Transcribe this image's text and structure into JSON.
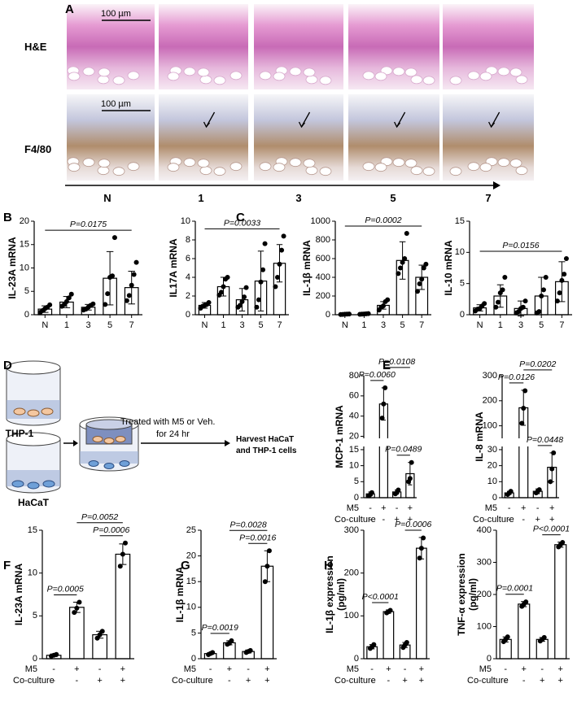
{
  "panel_labels": [
    "A",
    "B",
    "C",
    "D",
    "E",
    "F",
    "G",
    "H"
  ],
  "histology": {
    "row_labels": [
      "H&E",
      "F4/80"
    ],
    "scale_bar": "100 µm",
    "timepoints": [
      "N",
      "1",
      "3",
      "5",
      "7"
    ]
  },
  "schematic": {
    "cells_top": "THP-1",
    "cells_bottom": "HaCaT",
    "treatment": [
      "Treated with M5  or Veh.",
      "for 24 hr"
    ],
    "harvest": [
      "Harvest HaCaT",
      "and THP-1 cells"
    ]
  },
  "chart_data": [
    {
      "type": "bar",
      "ylabel": "IL-23A mRNA",
      "categories": [
        "N",
        "1",
        "3",
        "5",
        "7"
      ],
      "values": [
        1.2,
        2.7,
        1.6,
        7.8,
        5.8
      ],
      "errors": [
        0.7,
        1.2,
        0.6,
        5.7,
        3.5
      ],
      "points": [
        [
          0.5,
          0.9,
          1.3,
          1.6,
          2.1
        ],
        [
          1.8,
          2.2,
          2.8,
          3.6,
          4.4
        ],
        [
          1.0,
          1.2,
          1.6,
          2.0,
          2.3
        ],
        [
          2.2,
          4.5,
          8.0,
          8.3,
          16.5
        ],
        [
          3.0,
          4.1,
          6.3,
          8.6,
          11.2
        ]
      ],
      "ylim": [
        0,
        20
      ],
      "yticks": [
        0,
        5,
        10,
        15,
        20
      ],
      "bar_fill": "#ffffff",
      "edge_color": "#000000",
      "comparisons": [
        {
          "label": "P=0.0175",
          "between": [
            0,
            4
          ]
        }
      ]
    },
    {
      "type": "bar",
      "ylabel": "IL17A mRNA",
      "categories": [
        "N",
        "1",
        "3",
        "5",
        "7"
      ],
      "values": [
        1.0,
        3.0,
        1.6,
        3.6,
        5.5
      ],
      "errors": [
        0.3,
        1.0,
        1.2,
        3.2,
        2.0
      ],
      "points": [
        [
          0.7,
          0.9,
          1.0,
          1.1,
          1.3
        ],
        [
          2.1,
          2.4,
          3.0,
          3.8,
          4.0
        ],
        [
          0.8,
          1.0,
          1.4,
          1.9,
          2.9
        ],
        [
          0.8,
          1.6,
          3.5,
          4.8,
          7.6
        ],
        [
          3.0,
          4.0,
          5.4,
          6.9,
          8.4
        ]
      ],
      "ylim": [
        0,
        10
      ],
      "yticks": [
        0,
        2,
        4,
        6,
        8,
        10
      ],
      "bar_fill": "#ffffff",
      "edge_color": "#000000",
      "comparisons": [
        {
          "label": "P=0.0033",
          "between": [
            0,
            4
          ]
        }
      ]
    },
    {
      "type": "bar",
      "ylabel": "IL-1β mRNA",
      "categories": [
        "N",
        "1",
        "3",
        "5",
        "7"
      ],
      "values": [
        5,
        8,
        100,
        580,
        400
      ],
      "errors": [
        3,
        4,
        40,
        200,
        130
      ],
      "points": [
        [
          2,
          3,
          5,
          6,
          8
        ],
        [
          4,
          6,
          8,
          10,
          12
        ],
        [
          50,
          80,
          95,
          140,
          160
        ],
        [
          440,
          500,
          560,
          600,
          870
        ],
        [
          250,
          330,
          380,
          500,
          540
        ]
      ],
      "ylim": [
        0,
        1000
      ],
      "yticks": [
        0,
        200,
        400,
        600,
        800,
        1000
      ],
      "bar_fill": "#ffffff",
      "edge_color": "#000000",
      "comparisons": [
        {
          "label": "P=0.0002",
          "between": [
            0,
            4
          ]
        }
      ]
    },
    {
      "type": "bar",
      "ylabel": "IL-10 mRNA",
      "categories": [
        "N",
        "1",
        "3",
        "5",
        "7"
      ],
      "values": [
        1.1,
        3.0,
        1.0,
        3.0,
        5.3
      ],
      "errors": [
        0.5,
        1.8,
        1.2,
        3.0,
        3.2
      ],
      "points": [
        [
          0.6,
          0.9,
          1.0,
          1.4,
          1.8
        ],
        [
          1.2,
          2.0,
          3.5,
          4.0,
          6.0
        ],
        [
          0.3,
          0.5,
          1.0,
          1.2,
          2.2
        ],
        [
          0.3,
          0.5,
          3.0,
          4.0,
          6.0
        ],
        [
          2.2,
          3.5,
          5.5,
          6.5,
          9.0
        ]
      ],
      "ylim": [
        0,
        15
      ],
      "yticks": [
        0,
        5,
        10,
        15
      ],
      "bar_fill": "#ffffff",
      "edge_color": "#000000",
      "comparisons": [
        {
          "label": "P=0.0156",
          "between": [
            0,
            4
          ]
        }
      ]
    },
    {
      "type": "bar",
      "ylabel": "MCP-1 mRNA",
      "conditions": [
        {
          "name": "M5",
          "values": [
            "-",
            "+",
            "-",
            "+"
          ]
        },
        {
          "name": "Co-culture",
          "values": [
            "-",
            "-",
            "+",
            "+"
          ]
        }
      ],
      "values": [
        1.2,
        52,
        1.8,
        7.5
      ],
      "errors": [
        0.6,
        16,
        0.6,
        3.5
      ],
      "points": [
        [
          0.6,
          1.0,
          1.6
        ],
        [
          38,
          52,
          68
        ],
        [
          1.2,
          1.6,
          2.4
        ],
        [
          5,
          6,
          11
        ]
      ],
      "ylim": [
        0,
        80
      ],
      "ybreak": [
        16,
        18
      ],
      "yticks": [
        0,
        5,
        10,
        15,
        20,
        40,
        60,
        80
      ],
      "bar_fill": "#ffffff",
      "edge_color": "#000000",
      "comparisons": [
        {
          "label": "P=0.0060",
          "between": [
            0,
            1
          ]
        },
        {
          "label": "P=0.0108",
          "between": [
            1,
            3
          ]
        },
        {
          "label": "P=0.0489",
          "between": [
            2,
            3
          ]
        }
      ]
    },
    {
      "type": "bar",
      "ylabel": "IL-8 mRNA",
      "conditions": [
        {
          "name": "M5",
          "values": [
            "-",
            "+",
            "-",
            "+"
          ]
        },
        {
          "name": "Co-culture",
          "values": [
            "-",
            "-",
            "+",
            "+"
          ]
        }
      ],
      "values": [
        3,
        172,
        4,
        19
      ],
      "errors": [
        1,
        70,
        1.5,
        9
      ],
      "points": [
        [
          2,
          3,
          4
        ],
        [
          110,
          170,
          240
        ],
        [
          3,
          4,
          5
        ],
        [
          10,
          18,
          28
        ]
      ],
      "ylim": [
        0,
        300
      ],
      "ybreak": [
        32,
        50
      ],
      "yticks": [
        0,
        10,
        20,
        30,
        100,
        200,
        300
      ],
      "bar_fill": "#ffffff",
      "edge_color": "#000000",
      "comparisons": [
        {
          "label": "P=0.0126",
          "between": [
            0,
            1
          ]
        },
        {
          "label": "P=0.0202",
          "between": [
            1,
            3
          ]
        },
        {
          "label": "P=0.0448",
          "between": [
            2,
            3
          ]
        }
      ]
    },
    {
      "type": "bar",
      "ylabel": "IL-23A mRNA",
      "conditions": [
        {
          "name": "M5",
          "values": [
            "-",
            "+",
            "-",
            "+"
          ]
        },
        {
          "name": "Co-culture",
          "values": [
            "-",
            "-",
            "+",
            "+"
          ]
        }
      ],
      "values": [
        0.4,
        6.0,
        2.8,
        12.2
      ],
      "errors": [
        0.15,
        0.6,
        0.4,
        1.2
      ],
      "points": [
        [
          0.3,
          0.4,
          0.5
        ],
        [
          5.4,
          5.9,
          6.6
        ],
        [
          2.4,
          2.8,
          3.2
        ],
        [
          10.8,
          12.2,
          13.5
        ]
      ],
      "ylim": [
        0,
        15
      ],
      "yticks": [
        0,
        5,
        10,
        15
      ],
      "bar_fill": "#ffffff",
      "edge_color": "#000000",
      "comparisons": [
        {
          "label": "P=0.0005",
          "between": [
            0,
            1
          ]
        },
        {
          "label": "P=0.0006",
          "between": [
            2,
            3
          ]
        },
        {
          "label": "P=0.0052",
          "between": [
            1,
            3
          ]
        }
      ]
    },
    {
      "type": "bar",
      "ylabel": "IL-1β mRNA",
      "conditions": [
        {
          "name": "M5",
          "values": [
            "-",
            "+",
            "-",
            "+"
          ]
        },
        {
          "name": "Co-culture",
          "values": [
            "-",
            "-",
            "+",
            "+"
          ]
        }
      ],
      "values": [
        1.0,
        3.1,
        1.4,
        18
      ],
      "errors": [
        0.2,
        0.4,
        0.3,
        3
      ],
      "points": [
        [
          0.8,
          1.0,
          1.2
        ],
        [
          2.8,
          3.0,
          3.5
        ],
        [
          1.2,
          1.4,
          1.6
        ],
        [
          15,
          18,
          21
        ]
      ],
      "ylim": [
        0,
        25
      ],
      "yticks": [
        0,
        5,
        10,
        15,
        20,
        25
      ],
      "bar_fill": "#ffffff",
      "edge_color": "#000000",
      "comparisons": [
        {
          "label": "P=0.0019",
          "between": [
            0,
            1
          ]
        },
        {
          "label": "P=0.0016",
          "between": [
            2,
            3
          ]
        },
        {
          "label": "P=0.0028",
          "between": [
            1,
            3
          ]
        }
      ]
    },
    {
      "type": "bar",
      "ylabel": [
        "IL-1β expression",
        "(pg/ml)"
      ],
      "conditions": [
        {
          "name": "M5",
          "values": [
            "-",
            "+",
            "-",
            "+"
          ]
        },
        {
          "name": "Co-culture",
          "values": [
            "-",
            "-",
            "+",
            "+"
          ]
        }
      ],
      "values": [
        28,
        110,
        32,
        258
      ],
      "errors": [
        5,
        4,
        6,
        25
      ],
      "points": [
        [
          24,
          28,
          33
        ],
        [
          107,
          110,
          113
        ],
        [
          26,
          32,
          38
        ],
        [
          235,
          258,
          282
        ]
      ],
      "ylim": [
        0,
        300
      ],
      "yticks": [
        0,
        100,
        200,
        300
      ],
      "bar_fill": "#ffffff",
      "edge_color": "#000000",
      "comparisons": [
        {
          "label": "P<0.0001",
          "between": [
            0,
            1
          ]
        },
        {
          "label": "P=0.0006",
          "between": [
            2,
            3
          ]
        }
      ]
    },
    {
      "type": "bar",
      "ylabel": [
        "TNF-α expression",
        "(pg/ml)"
      ],
      "conditions": [
        {
          "name": "M5",
          "values": [
            "-",
            "+",
            "-",
            "+"
          ]
        },
        {
          "name": "Co-culture",
          "values": [
            "-",
            "-",
            "+",
            "+"
          ]
        }
      ],
      "values": [
        60,
        170,
        60,
        355
      ],
      "errors": [
        8,
        8,
        6,
        8
      ],
      "points": [
        [
          53,
          60,
          68
        ],
        [
          163,
          170,
          177
        ],
        [
          55,
          60,
          66
        ],
        [
          348,
          355,
          362
        ]
      ],
      "ylim": [
        0,
        400
      ],
      "yticks": [
        0,
        100,
        200,
        300,
        400
      ],
      "bar_fill": "#ffffff",
      "edge_color": "#000000",
      "comparisons": [
        {
          "label": "P=0.0001",
          "between": [
            0,
            1
          ]
        },
        {
          "label": "P<0.0001",
          "between": [
            2,
            3
          ]
        }
      ]
    }
  ]
}
